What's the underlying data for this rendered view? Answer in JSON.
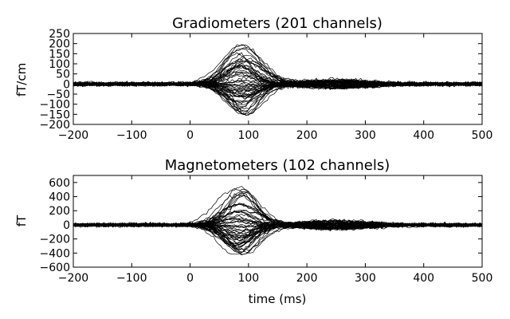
{
  "chart_data": [
    {
      "type": "line",
      "title": "Gradiometers (201 channels)",
      "xlabel": "",
      "ylabel": "fT/cm",
      "xlim": [
        -200,
        500
      ],
      "ylim": [
        -200,
        250
      ],
      "xticks": [
        -200,
        -100,
        0,
        100,
        200,
        300,
        400,
        500
      ],
      "yticks": [
        -200,
        -150,
        -100,
        -50,
        0,
        50,
        100,
        150,
        200,
        250
      ],
      "channel_count": 201,
      "line_color": "#000000",
      "peak": {
        "x": 90,
        "max": 200,
        "min": -160
      },
      "noise_amplitude": 15
    },
    {
      "type": "line",
      "title": "Magnetometers (102 channels)",
      "xlabel": "time (ms)",
      "ylabel": "fT",
      "xlim": [
        -200,
        500
      ],
      "ylim": [
        -600,
        700
      ],
      "xticks": [
        -200,
        -100,
        0,
        100,
        200,
        300,
        400,
        500
      ],
      "yticks": [
        -600,
        -400,
        -200,
        0,
        200,
        400,
        600
      ],
      "channel_count": 102,
      "line_color": "#000000",
      "peak": {
        "x": 85,
        "max": 540,
        "min": -430
      },
      "noise_amplitude": 40
    }
  ]
}
